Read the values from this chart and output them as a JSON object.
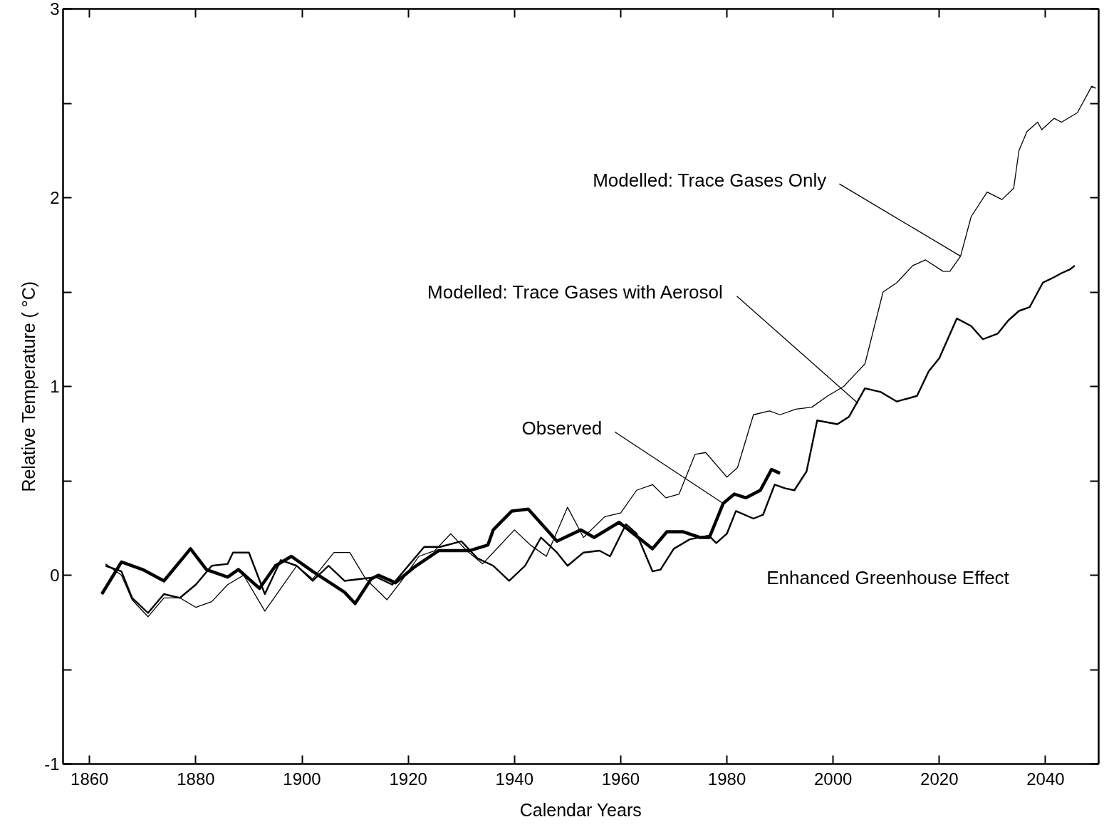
{
  "chart_data": {
    "type": "line",
    "xlabel": "Calendar Years",
    "ylabel": "Relative Temperature ( °C)",
    "xlim": [
      1855,
      2050
    ],
    "ylim": [
      -1,
      3
    ],
    "xticks": [
      1860,
      1880,
      1900,
      1920,
      1940,
      1960,
      1980,
      2000,
      2020,
      2040
    ],
    "yticks": [
      -1,
      {
        "value": -0.5,
        "label": null
      },
      0,
      {
        "value": 0.5,
        "label": null
      },
      1,
      {
        "value": 1.5,
        "label": null
      },
      2,
      {
        "value": 2.5,
        "label": null
      },
      3
    ],
    "grid": false,
    "marker": "none",
    "line_style": "solid",
    "series": [
      {
        "color": "#000000",
        "x": [
          1863,
          1866,
          1868,
          1871,
          1874,
          1877,
          1880,
          1883,
          1886,
          1889,
          1893,
          1896,
          1899,
          1902,
          1906,
          1909,
          1912,
          1916,
          1919,
          1922,
          1925,
          1928,
          1931,
          1934,
          1937,
          1940,
          1943,
          1946,
          1950,
          1953,
          1957,
          1960,
          1963,
          1966,
          1968.5,
          1971,
          1974,
          1976,
          1980,
          1982,
          1985,
          1988,
          1990,
          1993,
          1996,
          1999,
          2002,
          2004,
          2006,
          2009.4,
          2012,
          2015,
          2017.4,
          2020.7,
          2022,
          2024,
          2026,
          2029,
          2031.8,
          2034,
          2035,
          2036.5,
          2038.5,
          2039.3,
          2041.6,
          2043,
          2046,
          2048.7,
          2049.5
        ],
        "values": [
          0.06,
          0.0,
          -0.13,
          -0.22,
          -0.12,
          -0.12,
          -0.17,
          -0.14,
          -0.05,
          0.0,
          -0.19,
          -0.07,
          0.05,
          -0.02,
          0.12,
          0.12,
          -0.02,
          -0.13,
          -0.02,
          0.1,
          0.13,
          0.22,
          0.13,
          0.06,
          0.15,
          0.24,
          0.16,
          0.1,
          0.36,
          0.2,
          0.31,
          0.33,
          0.45,
          0.48,
          0.41,
          0.43,
          0.64,
          0.65,
          0.52,
          0.57,
          0.85,
          0.87,
          0.85,
          0.88,
          0.89,
          0.95,
          1.0,
          1.06,
          1.12,
          1.5,
          1.55,
          1.64,
          1.67,
          1.61,
          1.61,
          1.69,
          1.9,
          2.03,
          1.99,
          2.05,
          2.25,
          2.35,
          2.4,
          2.36,
          2.42,
          2.4,
          2.45,
          2.59,
          2.58
        ]
      },
      {
        "color": "#000000",
        "x": [
          1863,
          1866,
          1868,
          1871,
          1874,
          1877,
          1880,
          1883,
          1886,
          1887,
          1890,
          1893,
          1896,
          1899,
          1902,
          1905,
          1908,
          1911,
          1914,
          1917,
          1920,
          1923,
          1926,
          1930,
          1933,
          1936,
          1939,
          1942,
          1945,
          1948,
          1950,
          1953,
          1956,
          1958,
          1961,
          1963,
          1966,
          1967.5,
          1970,
          1973,
          1976.6,
          1978,
          1980,
          1981.7,
          1985,
          1986.8,
          1989,
          1991,
          1992.7,
          1995,
          1997,
          2000.8,
          2003,
          2006,
          2009,
          2012,
          2015.8,
          2018,
          2020,
          2023.3,
          2026,
          2028.2,
          2031,
          2033,
          2035,
          2037,
          2039.5,
          2041,
          2043,
          2044.6,
          2045.5
        ],
        "values": [
          0.05,
          0.02,
          -0.12,
          -0.2,
          -0.1,
          -0.12,
          -0.05,
          0.05,
          0.06,
          0.12,
          0.12,
          -0.1,
          0.08,
          0.05,
          -0.03,
          0.05,
          -0.03,
          -0.02,
          -0.01,
          -0.05,
          0.05,
          0.15,
          0.15,
          0.18,
          0.09,
          0.05,
          -0.03,
          0.05,
          0.2,
          0.12,
          0.05,
          0.12,
          0.13,
          0.1,
          0.27,
          0.22,
          0.02,
          0.03,
          0.14,
          0.19,
          0.21,
          0.17,
          0.22,
          0.34,
          0.3,
          0.32,
          0.48,
          0.46,
          0.45,
          0.55,
          0.82,
          0.8,
          0.84,
          0.99,
          0.97,
          0.92,
          0.95,
          1.08,
          1.15,
          1.36,
          1.32,
          1.25,
          1.28,
          1.35,
          1.4,
          1.42,
          1.55,
          1.57,
          1.6,
          1.62,
          1.64
        ]
      },
      {
        "color": "#000000",
        "x": [
          1862.3,
          1866,
          1870,
          1874,
          1879,
          1882,
          1886,
          1888,
          1892,
          1895,
          1898,
          1902,
          1908,
          1910,
          1913,
          1914.4,
          1917.6,
          1921,
          1925.7,
          1931.5,
          1935,
          1936,
          1939.5,
          1942.6,
          1948,
          1952.5,
          1955,
          1959.7,
          1966,
          1968.7,
          1971.8,
          1974.9,
          1976.7,
          1979.3,
          1981.4,
          1983.6,
          1986.3,
          1988.4,
          1990
        ],
        "values": [
          -0.1,
          0.07,
          0.03,
          -0.03,
          0.14,
          0.03,
          -0.01,
          0.03,
          -0.07,
          0.05,
          0.1,
          0.02,
          -0.09,
          -0.15,
          -0.02,
          0.0,
          -0.04,
          0.04,
          0.13,
          0.13,
          0.16,
          0.24,
          0.34,
          0.35,
          0.18,
          0.24,
          0.2,
          0.28,
          0.14,
          0.23,
          0.23,
          0.2,
          0.2,
          0.38,
          0.43,
          0.41,
          0.45,
          0.56,
          0.54
        ]
      }
    ],
    "annotations": [
      {
        "text": "Modelled: Trace Gases Only",
        "x": 2024,
        "y": 1.69
      },
      {
        "text": "Modelled: Trace Gases with Aerosol",
        "x": 2004.7,
        "y": 0.91
      },
      "Enhanced Greenhouse Effect",
      {
        "text": "Observed",
        "x": 1979.3,
        "y": 0.38
      }
    ]
  }
}
